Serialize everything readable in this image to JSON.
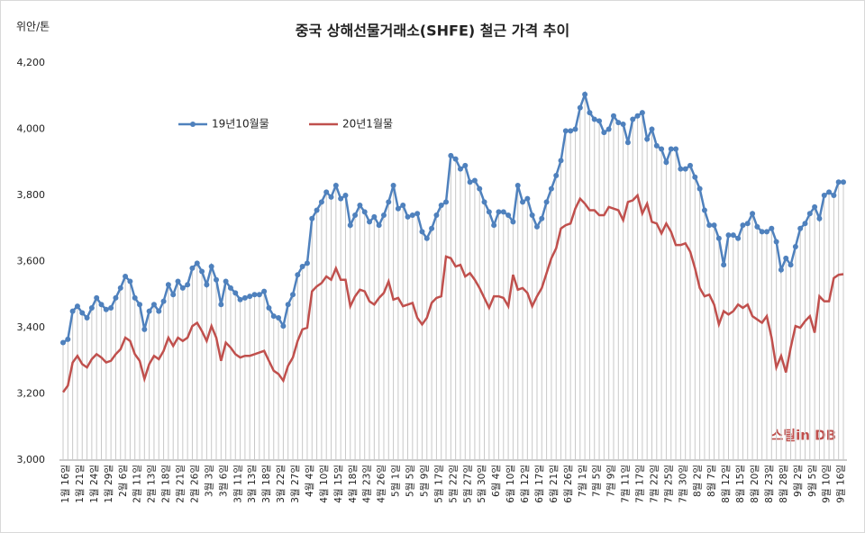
{
  "chart_data": {
    "type": "line",
    "title": "중국 상해선물거래소(SHFE) 철근 가격 추이",
    "y_axis_label": "위안/톤",
    "watermark": "스틸in DB",
    "ylim": [
      3000,
      4200
    ],
    "yticks": [
      {
        "value": 3000,
        "label": "3,000"
      },
      {
        "value": 3200,
        "label": "3,200"
      },
      {
        "value": 3400,
        "label": "3,400"
      },
      {
        "value": 3600,
        "label": "3,600"
      },
      {
        "value": 3800,
        "label": "3,800"
      },
      {
        "value": 4000,
        "label": "4,000"
      },
      {
        "value": 4200,
        "label": "4,200"
      }
    ],
    "grid": false,
    "drop_lines": true,
    "categories": [
      "1월 16일",
      null,
      null,
      "1월 21일",
      null,
      null,
      "1월 24일",
      null,
      null,
      "1월 29일",
      null,
      null,
      "2월 6일",
      null,
      null,
      "2월 11일",
      null,
      null,
      "2월 13일",
      null,
      null,
      "2월 18일",
      null,
      null,
      "2월 21일",
      null,
      null,
      "2월 26일",
      null,
      null,
      "3월 3일",
      null,
      null,
      "3월 6일",
      null,
      null,
      "3월 11일",
      null,
      null,
      "3월 13일",
      null,
      null,
      "3월 18일",
      null,
      null,
      "3월 22일",
      null,
      null,
      "3월 27일",
      null,
      null,
      "4월 4일",
      null,
      null,
      "4월 10일",
      null,
      null,
      "4월 15일",
      null,
      null,
      "4월 18일",
      null,
      null,
      "4월 23일",
      null,
      null,
      "4월 26일",
      null,
      null,
      "5월 1일",
      null,
      null,
      "5월 5일",
      null,
      null,
      "5월 9일",
      null,
      null,
      "5월 17일",
      null,
      null,
      "5월 22일",
      null,
      null,
      "5월 27일",
      null,
      null,
      "5월 30일",
      null,
      null,
      "6월 4일",
      null,
      null,
      "6월 10일",
      null,
      null,
      "6월 12일",
      null,
      null,
      "6월 17일",
      null,
      null,
      "6월 21일",
      null,
      null,
      "6월 26일",
      null,
      null,
      "7월 1일",
      null,
      null,
      "7월 5일",
      null,
      null,
      "7월 9일",
      null,
      null,
      "7월 11일",
      null,
      null,
      "7월 17일",
      null,
      null,
      "7월 22일",
      null,
      null,
      "7월 25일",
      null,
      null,
      "7월 30일",
      null,
      null,
      "8월 2일",
      null,
      null,
      "8월 7일",
      null,
      null,
      "8월 12일",
      null,
      null,
      "8월 15일",
      null,
      null,
      "8월 20일",
      null,
      null,
      "8월 23일",
      null,
      null,
      "8월 28일",
      null,
      null,
      "9월 2일",
      null,
      null,
      "9월 5일",
      null,
      null,
      "9월 10일",
      null,
      null,
      "9월 16일",
      null
    ],
    "series": [
      {
        "name": "19년10월물",
        "color": "#4f81bd",
        "markers": true,
        "values": [
          3355,
          3365,
          3450,
          3465,
          3445,
          3430,
          3460,
          3490,
          3470,
          3455,
          3460,
          3490,
          3520,
          3555,
          3540,
          3490,
          3470,
          3395,
          3450,
          3470,
          3450,
          3480,
          3530,
          3500,
          3540,
          3520,
          3530,
          3580,
          3595,
          3570,
          3530,
          3585,
          3545,
          3470,
          3540,
          3520,
          3505,
          3485,
          3490,
          3495,
          3500,
          3500,
          3510,
          3460,
          3435,
          3430,
          3405,
          3470,
          3500,
          3560,
          3585,
          3595,
          3730,
          3755,
          3780,
          3810,
          3795,
          3830,
          3790,
          3800,
          3710,
          3740,
          3770,
          3750,
          3720,
          3735,
          3710,
          3740,
          3780,
          3830,
          3760,
          3770,
          3735,
          3740,
          3745,
          3690,
          3670,
          3700,
          3740,
          3770,
          3780,
          3920,
          3910,
          3880,
          3890,
          3840,
          3845,
          3820,
          3780,
          3750,
          3710,
          3750,
          3750,
          3740,
          3720,
          3830,
          3780,
          3790,
          3740,
          3705,
          3730,
          3780,
          3820,
          3860,
          3905,
          3995,
          3995,
          4000,
          4065,
          4105,
          4050,
          4030,
          4025,
          3990,
          4000,
          4040,
          4020,
          4015,
          3960,
          4030,
          4040,
          4050,
          3970,
          4000,
          3950,
          3940,
          3900,
          3940,
          3940,
          3880,
          3880,
          3890,
          3855,
          3820,
          3755,
          3710,
          3710,
          3670,
          3590,
          3680,
          3680,
          3670,
          3710,
          3715,
          3745,
          3705,
          3690,
          3690,
          3700,
          3660,
          3575,
          3610,
          3590,
          3645,
          3700,
          3715,
          3745,
          3765,
          3730,
          3800,
          3810,
          3800,
          3840,
          3840
        ]
      },
      {
        "name": "20년1월물",
        "color": "#c0504d",
        "markers": false,
        "values": [
          3205,
          3225,
          3295,
          3315,
          3290,
          3280,
          3305,
          3320,
          3310,
          3295,
          3300,
          3320,
          3335,
          3370,
          3360,
          3320,
          3300,
          3245,
          3290,
          3315,
          3305,
          3330,
          3370,
          3345,
          3370,
          3360,
          3370,
          3405,
          3415,
          3390,
          3360,
          3405,
          3370,
          3300,
          3355,
          3340,
          3320,
          3310,
          3315,
          3315,
          3320,
          3325,
          3330,
          3300,
          3270,
          3260,
          3240,
          3285,
          3310,
          3360,
          3395,
          3400,
          3510,
          3525,
          3535,
          3555,
          3545,
          3580,
          3545,
          3545,
          3465,
          3495,
          3515,
          3510,
          3480,
          3470,
          3490,
          3505,
          3540,
          3485,
          3490,
          3465,
          3470,
          3475,
          3430,
          3410,
          3430,
          3475,
          3490,
          3495,
          3615,
          3610,
          3585,
          3590,
          3555,
          3565,
          3545,
          3520,
          3490,
          3460,
          3495,
          3495,
          3490,
          3465,
          3560,
          3515,
          3520,
          3505,
          3465,
          3495,
          3520,
          3565,
          3610,
          3640,
          3700,
          3710,
          3715,
          3760,
          3790,
          3775,
          3755,
          3755,
          3740,
          3740,
          3765,
          3760,
          3755,
          3725,
          3780,
          3785,
          3800,
          3745,
          3775,
          3720,
          3715,
          3685,
          3715,
          3690,
          3650,
          3650,
          3655,
          3630,
          3580,
          3520,
          3495,
          3500,
          3470,
          3410,
          3450,
          3440,
          3450,
          3470,
          3460,
          3470,
          3435,
          3425,
          3415,
          3435,
          3370,
          3280,
          3315,
          3265,
          3340,
          3405,
          3400,
          3420,
          3435,
          3385,
          3495,
          3480,
          3480,
          3550,
          3560,
          3562
        ]
      }
    ]
  }
}
